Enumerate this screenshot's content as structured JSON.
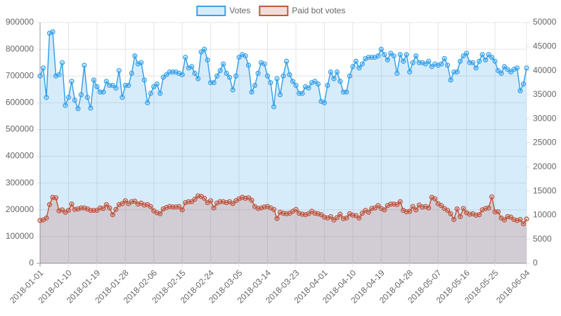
{
  "chart_data": {
    "type": "line",
    "categories": [
      "2018-01-01",
      null,
      null,
      null,
      null,
      null,
      null,
      null,
      null,
      "2018-01-10",
      null,
      null,
      null,
      null,
      null,
      null,
      null,
      null,
      "2018-01-19",
      null,
      null,
      null,
      null,
      null,
      null,
      null,
      null,
      "2018-01-28",
      null,
      null,
      null,
      null,
      null,
      null,
      null,
      null,
      "2018-02-06",
      null,
      null,
      null,
      null,
      null,
      null,
      null,
      null,
      "2018-02-15",
      null,
      null,
      null,
      null,
      null,
      null,
      null,
      null,
      "2018-02-24",
      null,
      null,
      null,
      null,
      null,
      null,
      null,
      null,
      "2018-03-05",
      null,
      null,
      null,
      null,
      null,
      null,
      null,
      null,
      "2018-03-14",
      null,
      null,
      null,
      null,
      null,
      null,
      null,
      null,
      "2018-03-23",
      null,
      null,
      null,
      null,
      null,
      null,
      null,
      null,
      "2018-04-01",
      null,
      null,
      null,
      null,
      null,
      null,
      null,
      null,
      "2018-04-10",
      null,
      null,
      null,
      null,
      null,
      null,
      null,
      null,
      "2018-04-19",
      null,
      null,
      null,
      null,
      null,
      null,
      null,
      null,
      "2018-04-28",
      null,
      null,
      null,
      null,
      null,
      null,
      null,
      null,
      "2018-05-07",
      null,
      null,
      null,
      null,
      null,
      null,
      null,
      null,
      "2018-05-16",
      null,
      null,
      null,
      null,
      null,
      null,
      null,
      null,
      "2018-05-25",
      null,
      null,
      null,
      null,
      null,
      null,
      null,
      null,
      null,
      "2018-06-04"
    ],
    "series": [
      {
        "name": "Votes",
        "color": "#36a2eb",
        "fill": "rgba(54,162,235,0.2)",
        "axis": "y",
        "values": [
          700000,
          730000,
          620000,
          860000,
          865000,
          700000,
          705000,
          750000,
          590000,
          620000,
          680000,
          610000,
          578000,
          630000,
          740000,
          620000,
          580000,
          685000,
          660000,
          640000,
          640000,
          680000,
          665000,
          665000,
          655000,
          720000,
          620000,
          665000,
          665000,
          710000,
          775000,
          745000,
          750000,
          685000,
          600000,
          635000,
          660000,
          670000,
          635000,
          695000,
          705000,
          715000,
          715000,
          715000,
          710000,
          705000,
          770000,
          730000,
          735000,
          710000,
          690000,
          790000,
          800000,
          760000,
          675000,
          675000,
          700000,
          720000,
          745000,
          710000,
          695000,
          648000,
          700000,
          770000,
          780000,
          775000,
          740000,
          640000,
          665000,
          710000,
          750000,
          745000,
          700000,
          675000,
          585000,
          690000,
          630000,
          700000,
          755000,
          705000,
          680000,
          665000,
          635000,
          635000,
          660000,
          655000,
          675000,
          680000,
          670000,
          605000,
          600000,
          665000,
          715000,
          690000,
          715000,
          680000,
          640000,
          640000,
          700000,
          735000,
          755000,
          730000,
          745000,
          765000,
          770000,
          770000,
          770000,
          775000,
          800000,
          780000,
          760000,
          785000,
          775000,
          710000,
          780000,
          755000,
          780000,
          715000,
          750000,
          775000,
          750000,
          750000,
          745000,
          755000,
          735000,
          745000,
          740000,
          745000,
          765000,
          740000,
          685000,
          715000,
          715000,
          755000,
          775000,
          785000,
          750000,
          750000,
          730000,
          755000,
          780000,
          760000,
          780000,
          770000,
          755000,
          720000,
          710000,
          735000,
          725000,
          715000,
          725000,
          730000,
          645000,
          670000,
          730000
        ]
      },
      {
        "name": "Paid bot votes",
        "color": "#c0573f",
        "fill": "rgba(192,87,63,0.2)",
        "axis": "y2",
        "values": [
          8900,
          9000,
          9400,
          12200,
          13700,
          13600,
          10900,
          11100,
          10600,
          11000,
          12300,
          11200,
          11300,
          11500,
          11500,
          11300,
          11000,
          11000,
          11000,
          11500,
          11400,
          12200,
          11500,
          10100,
          11200,
          12200,
          12400,
          13000,
          12400,
          12800,
          12900,
          12300,
          12500,
          12100,
          12200,
          11800,
          10900,
          10500,
          10300,
          11300,
          11600,
          11800,
          11700,
          11700,
          11800,
          11100,
          12600,
          12800,
          12800,
          13300,
          14000,
          13900,
          13500,
          12600,
          13000,
          11500,
          12500,
          12800,
          12800,
          12600,
          12800,
          12400,
          13000,
          13400,
          13700,
          13500,
          13600,
          13100,
          11800,
          11400,
          11500,
          11700,
          11800,
          11500,
          11200,
          9300,
          10600,
          10400,
          10300,
          10400,
          10800,
          11200,
          10400,
          10200,
          10100,
          10300,
          10800,
          10400,
          10300,
          10100,
          9600,
          9400,
          9700,
          9000,
          9500,
          10200,
          9300,
          9400,
          10300,
          10000,
          9900,
          9400,
          10400,
          11000,
          10600,
          11400,
          11500,
          12000,
          11400,
          11100,
          12000,
          12300,
          12300,
          12200,
          12800,
          11000,
          10700,
          10800,
          11800,
          11100,
          12100,
          11700,
          11800,
          11500,
          13700,
          13400,
          12400,
          12000,
          11400,
          11000,
          10300,
          9100,
          11300,
          9700,
          11400,
          10500,
          10200,
          10300,
          10000,
          10100,
          11100,
          11400,
          11500,
          13800,
          10700,
          10700,
          9400,
          9000,
          9700,
          9600,
          9100,
          8900,
          9100,
          8200,
          9200
        ]
      }
    ],
    "ylim": [
      0,
      900000
    ],
    "yticks": [
      0,
      100000,
      200000,
      300000,
      400000,
      500000,
      600000,
      700000,
      800000,
      900000
    ],
    "y2lim": [
      0,
      50000
    ],
    "y2ticks": [
      0,
      5000,
      10000,
      15000,
      20000,
      25000,
      30000,
      35000,
      40000,
      45000,
      50000
    ],
    "grid": true,
    "legend": "top"
  }
}
